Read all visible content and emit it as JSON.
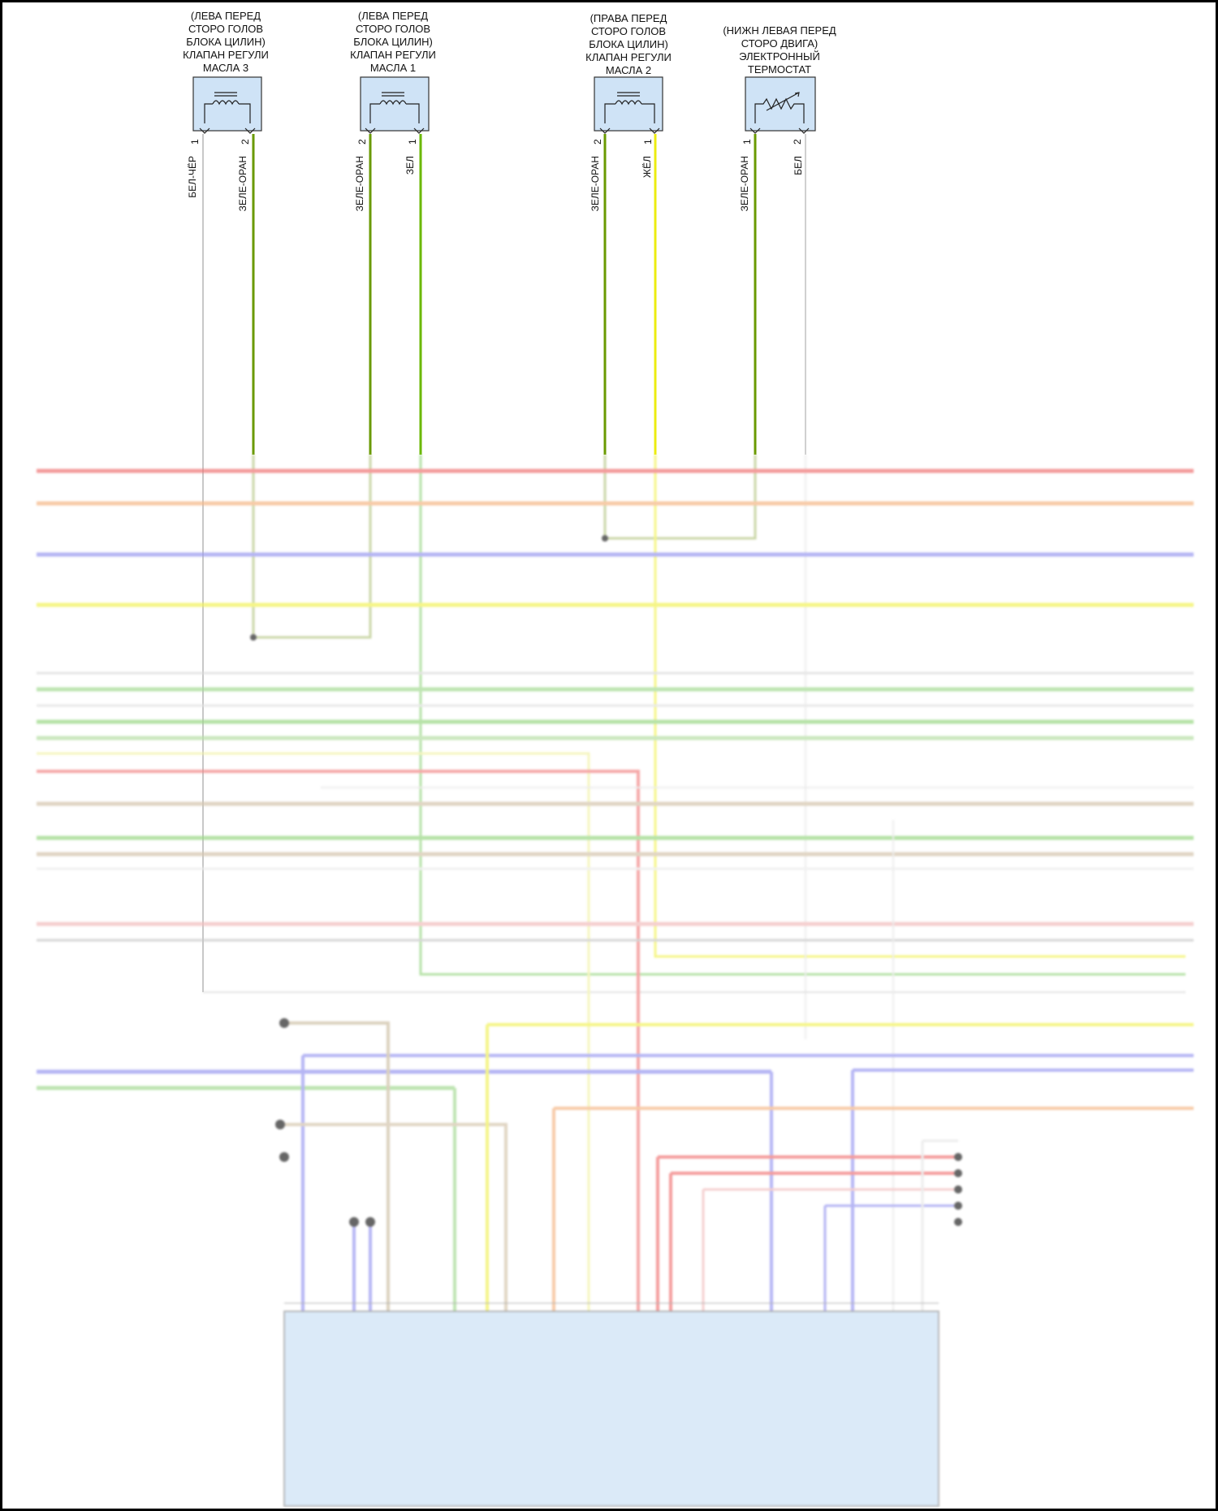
{
  "components": [
    {
      "id": "vvt3",
      "lines": [
        "(ЛЕВА ПЕРЕД",
        "СТОРО ГОЛОВ",
        "БЛОКА ЦИЛИН)",
        "КЛАПАН РЕГУЛИ",
        "МАСЛА 3"
      ],
      "symbol": "coil",
      "pins": [
        {
          "num": "1",
          "wire": "БЕЛ-ЧЁР",
          "color": "#c4c4c4"
        },
        {
          "num": "2",
          "wire": "ЗЕЛЕ-ОРАН",
          "color": "#6a9a00"
        }
      ]
    },
    {
      "id": "vvt1",
      "lines": [
        "(ЛЕВА ПЕРЕД",
        "СТОРО ГОЛОВ",
        "БЛОКА ЦИЛИН)",
        "КЛАПАН РЕГУЛИ",
        "МАСЛА 1"
      ],
      "symbol": "coil",
      "pins": [
        {
          "num": "2",
          "wire": "ЗЕЛЕ-ОРАН",
          "color": "#6a9a00"
        },
        {
          "num": "1",
          "wire": "ЗЕЛ",
          "color": "#6ab800"
        }
      ]
    },
    {
      "id": "vvt2",
      "lines": [
        "(ПРАВА ПЕРЕД",
        "СТОРО ГОЛОВ",
        "БЛОКА ЦИЛИН)",
        "КЛАПАН РЕГУЛИ",
        "МАСЛА 2"
      ],
      "symbol": "coil",
      "pins": [
        {
          "num": "2",
          "wire": "ЗЕЛЕ-ОРАН",
          "color": "#6a9a00"
        },
        {
          "num": "1",
          "wire": "ЖЁЛ",
          "color": "#ecec10"
        }
      ]
    },
    {
      "id": "thermostat",
      "lines": [
        "(НИЖН ЛЕВАЯ ПЕРЕД",
        "СТОРО ДВИГА)",
        "ЭЛЕКТРОННЫЙ",
        "ТЕРМОСТАТ"
      ],
      "symbol": "resistor",
      "pins": [
        {
          "num": "1",
          "wire": "ЗЕЛЕ-ОРАН",
          "color": "#6a9a00"
        },
        {
          "num": "2",
          "wire": "БЕЛ",
          "color": "#d0d0d0"
        }
      ]
    }
  ],
  "bus_colors": [
    "#f07a7a",
    "#f5b98a",
    "#b9c98a",
    "#9c9cf0",
    "#f2f25e",
    "#cfd0a8",
    "#dcdcdc",
    "#9ed98a",
    "#d9d9d9",
    "#a8dc98",
    "#b9e0a8",
    "#f0c8c8",
    "#d6c7b0",
    "#f2c0c0",
    "#c8c8c8",
    "#ececec"
  ],
  "connector_color": "#cfe3f6",
  "accent": {
    "junction": "#333333",
    "frame": "#000000"
  }
}
